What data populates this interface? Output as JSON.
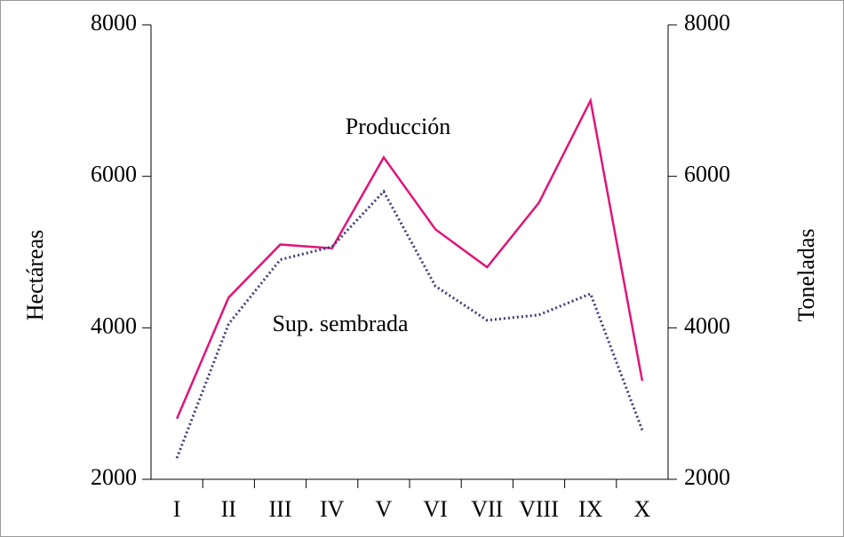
{
  "chart_data": {
    "type": "line",
    "categories": [
      "I",
      "II",
      "III",
      "IV",
      "V",
      "VI",
      "VII",
      "VIII",
      "IX",
      "X"
    ],
    "series": [
      {
        "name": "Producción",
        "color": "#e0147a",
        "axis": "y2",
        "values": [
          2800,
          4400,
          5100,
          5050,
          6250,
          5300,
          4800,
          5650,
          7000,
          3300
        ]
      },
      {
        "name": "Sup. sembrada",
        "color": "#3c3c78",
        "values": [
          2280,
          4050,
          4900,
          5070,
          5800,
          4550,
          4100,
          4170,
          4450,
          2650
        ]
      }
    ],
    "ylabel": "Hectáreas",
    "y2label": "Toneladas",
    "ylim": [
      2000,
      8000
    ],
    "yticks": [
      2000,
      4000,
      6000,
      8000
    ],
    "y2lim": [
      2000,
      8000
    ],
    "y2ticks": [
      2000,
      4000,
      6000,
      8000
    ]
  }
}
